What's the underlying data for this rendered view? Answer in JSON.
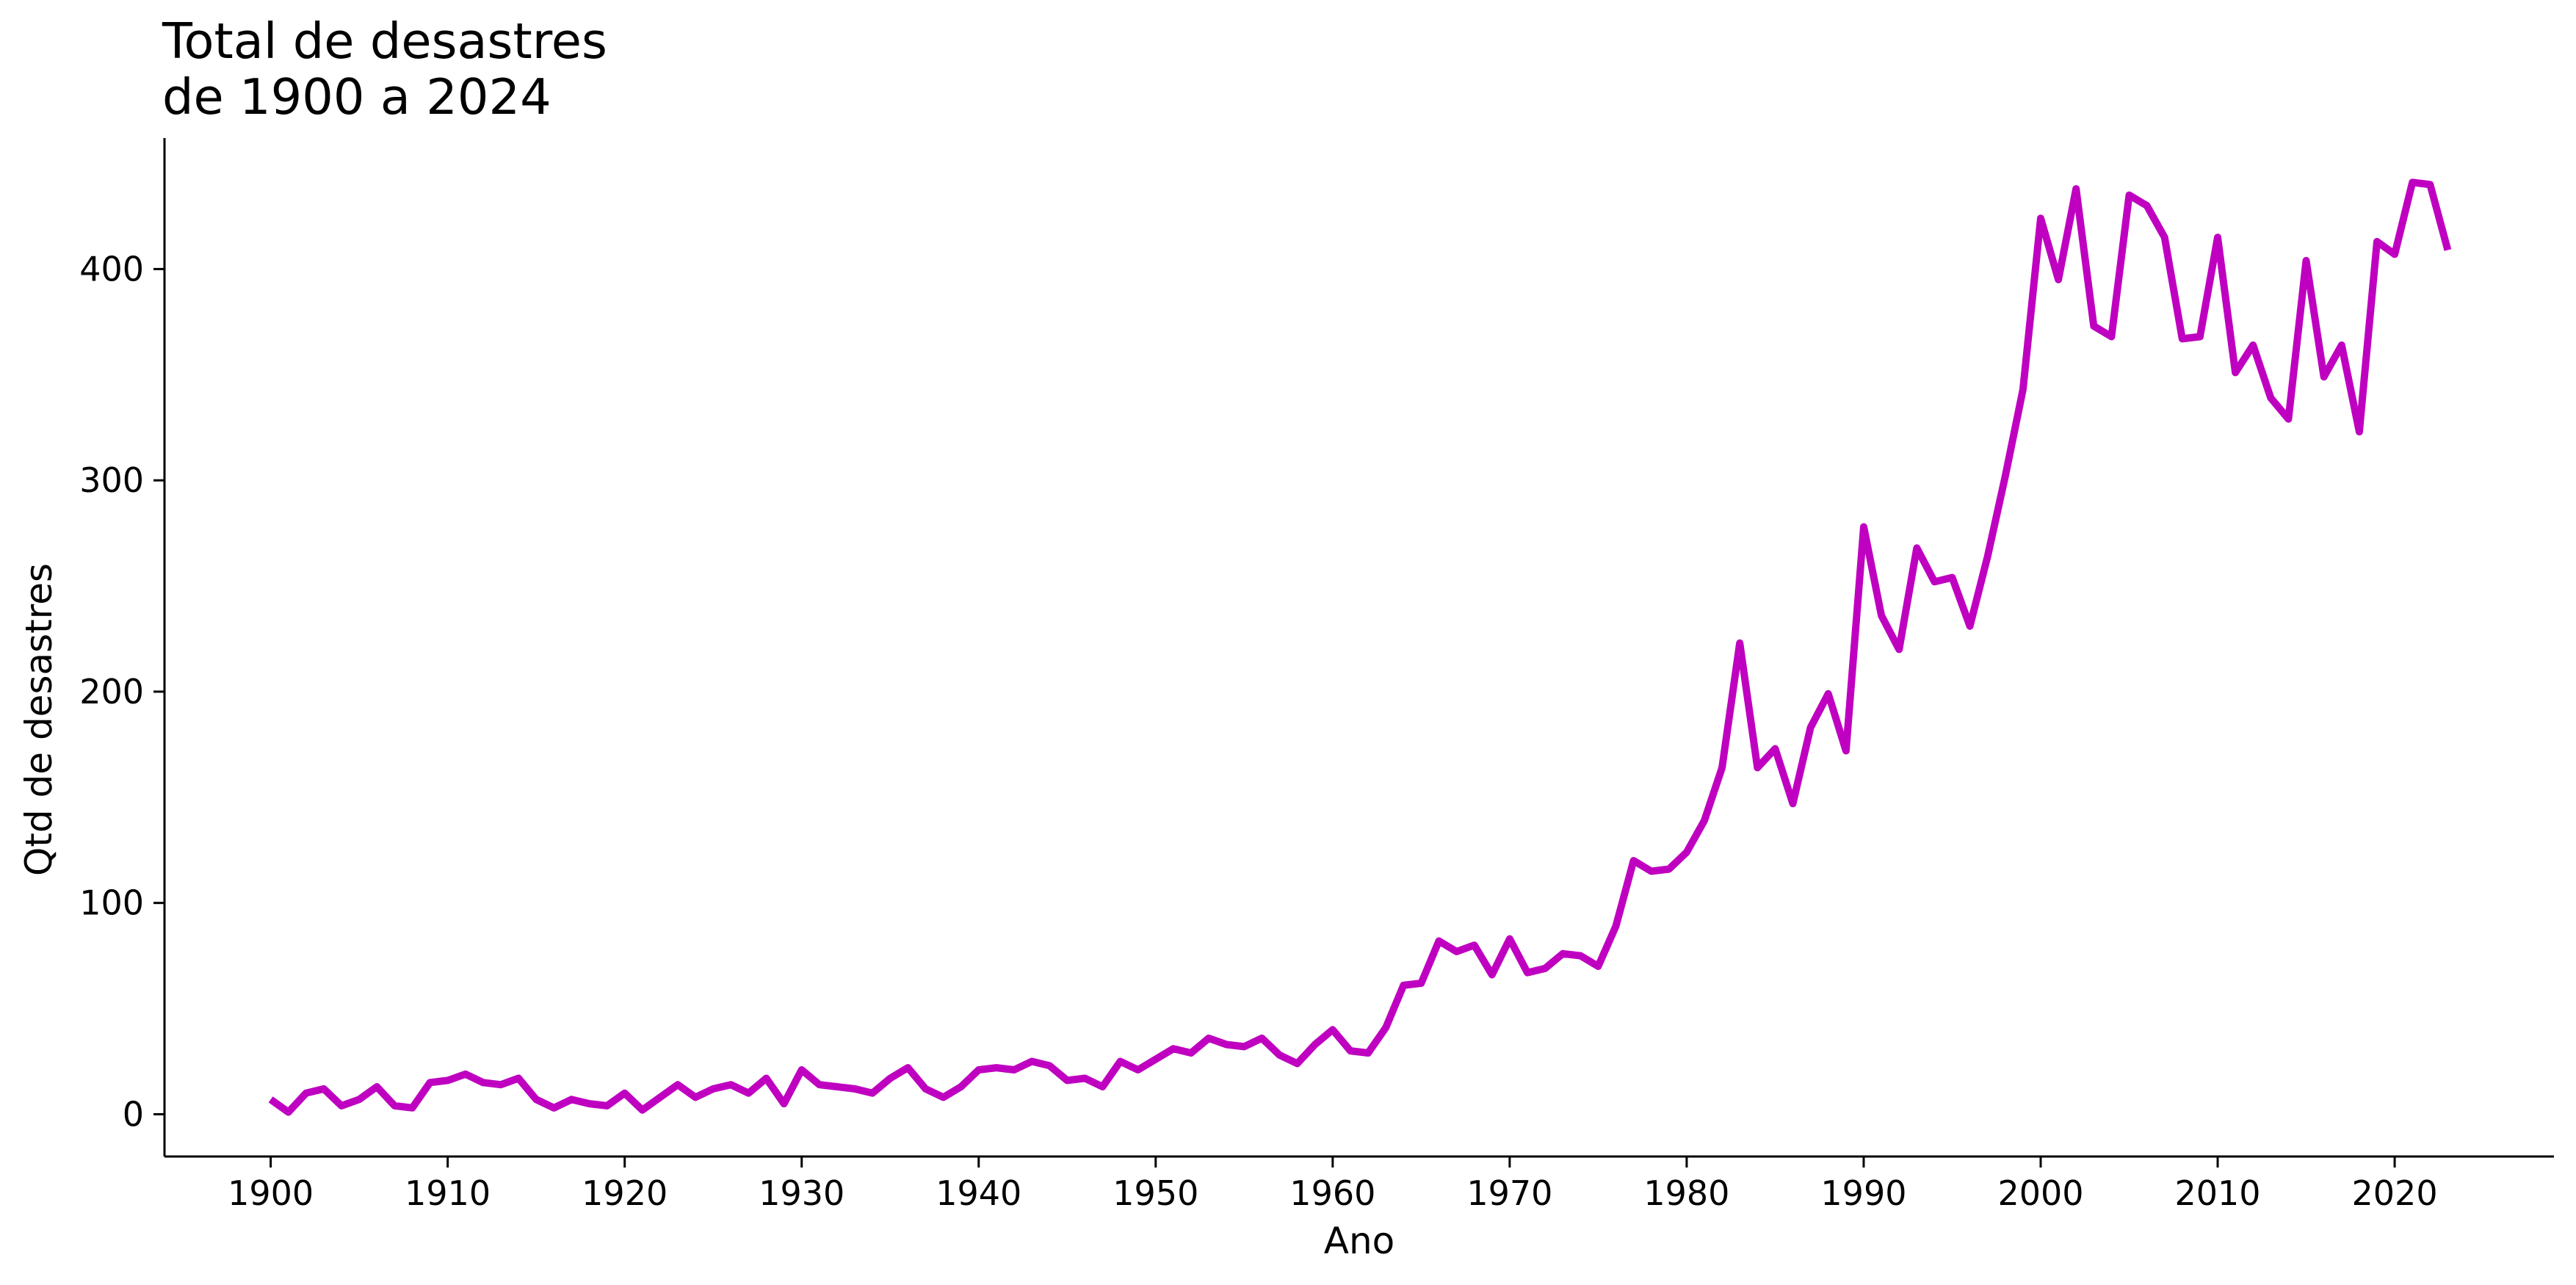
{
  "chart_data": {
    "type": "line",
    "title_lines": [
      "Total de desastres",
      "de 1900 a 2024"
    ],
    "xlabel": "Ano",
    "ylabel": "Qtd de desastres",
    "xlim": [
      1894,
      2029
    ],
    "ylim": [
      -20,
      462
    ],
    "xticks": [
      1900,
      1910,
      1920,
      1930,
      1940,
      1950,
      1960,
      1970,
      1980,
      1990,
      2000,
      2010,
      2020
    ],
    "yticks": [
      0,
      100,
      200,
      300,
      400
    ],
    "grid": false,
    "line_color": "#bf00c0",
    "series": [
      {
        "x": [
          1900,
          1901,
          1902,
          1903,
          1904,
          1905,
          1906,
          1907,
          1908,
          1909,
          1910,
          1911,
          1912,
          1913,
          1914,
          1915,
          1916,
          1917,
          1918,
          1919,
          1920,
          1921,
          1922,
          1923,
          1924,
          1925,
          1926,
          1927,
          1928,
          1929,
          1930,
          1931,
          1932,
          1933,
          1934,
          1935,
          1936,
          1937,
          1938,
          1939,
          1940,
          1941,
          1942,
          1943,
          1944,
          1945,
          1946,
          1947,
          1948,
          1949,
          1950,
          1951,
          1952,
          1953,
          1954,
          1955,
          1956,
          1957,
          1958,
          1959,
          1960,
          1961,
          1962,
          1963,
          1964,
          1965,
          1966,
          1967,
          1968,
          1969,
          1970,
          1971,
          1972,
          1973,
          1974,
          1975,
          1976,
          1977,
          1978,
          1979,
          1980,
          1981,
          1982,
          1983,
          1984,
          1985,
          1986,
          1987,
          1988,
          1989,
          1990,
          1991,
          1992,
          1993,
          1994,
          1995,
          1996,
          1997,
          1998,
          1999,
          2000,
          2001,
          2002,
          2003,
          2004,
          2005,
          2006,
          2007,
          2008,
          2009,
          2010,
          2011,
          2012,
          2013,
          2014,
          2015,
          2016,
          2017,
          2018,
          2019,
          2020,
          2021,
          2022,
          2023
        ],
        "values": [
          7,
          1,
          10,
          12,
          4,
          7,
          13,
          4,
          3,
          15,
          16,
          19,
          15,
          14,
          17,
          7,
          3,
          7,
          5,
          4,
          10,
          2,
          8,
          14,
          8,
          12,
          14,
          10,
          17,
          5,
          21,
          14,
          13,
          12,
          10,
          17,
          22,
          12,
          8,
          13,
          21,
          22,
          21,
          25,
          23,
          16,
          17,
          13,
          25,
          21,
          26,
          31,
          29,
          36,
          33,
          32,
          36,
          28,
          24,
          33,
          40,
          30,
          29,
          41,
          61,
          62,
          82,
          77,
          80,
          66,
          83,
          67,
          69,
          76,
          75,
          70,
          89,
          120,
          115,
          116,
          124,
          139,
          164,
          223,
          164,
          173,
          147,
          183,
          199,
          172,
          278,
          236,
          220,
          268,
          252,
          254,
          231,
          264,
          302,
          343,
          424,
          395,
          438,
          373,
          368,
          435,
          430,
          415,
          367,
          368,
          415,
          351,
          364,
          339,
          329,
          404,
          349,
          364,
          323,
          413,
          407,
          441,
          440,
          409
        ]
      }
    ]
  }
}
